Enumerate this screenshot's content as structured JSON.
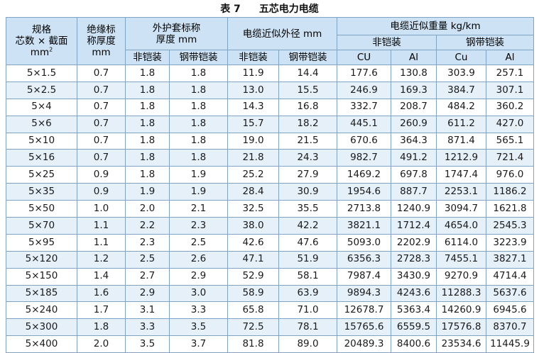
{
  "caption": {
    "number": "表 7",
    "title": "五芯电力电缆"
  },
  "headers": {
    "spec_line1": "规格",
    "spec_line2": "芯数 × 截面",
    "spec_line3": "mm",
    "spec_sup": "2",
    "insul_line1": "绝缘标",
    "insul_line2": "称厚度",
    "insul_line3": "mm",
    "sheath_line1": "外护套标称",
    "sheath_line2": "厚度 mm",
    "diam": "电缆近似外径 mm",
    "weight": "电缆近似重量 kg/km",
    "non_armored": "非铠装",
    "steel_armored": "钢带铠装",
    "cu_upper": "CU",
    "al_1": "Al",
    "cu_2": "Cu",
    "al_2": "Al"
  },
  "rows": [
    [
      "5×1.5",
      "0.7",
      "1.8",
      "1.8",
      "11.9",
      "14.4",
      "177.6",
      "130.8",
      "303.9",
      "257.1"
    ],
    [
      "5×2.5",
      "0.7",
      "1.8",
      "1.8",
      "13.0",
      "15.5",
      "246.9",
      "169.3",
      "384.7",
      "307.1"
    ],
    [
      "5×4",
      "0.7",
      "1.8",
      "1.8",
      "14.3",
      "16.8",
      "332.7",
      "208.7",
      "484.2",
      "360.2"
    ],
    [
      "5×6",
      "0.7",
      "1.8",
      "1.8",
      "15.7",
      "18.2",
      "445.1",
      "260.9",
      "611.2",
      "427.0"
    ],
    [
      "5×10",
      "0.7",
      "1.8",
      "1.8",
      "19.0",
      "21.5",
      "670.6",
      "364.3",
      "871.4",
      "565.1"
    ],
    [
      "5×16",
      "0.7",
      "1.8",
      "1.8",
      "21.8",
      "24.3",
      "982.7",
      "491.2",
      "1212.9",
      "721.4"
    ],
    [
      "5×25",
      "0.9",
      "1.8",
      "1.9",
      "25.2",
      "27.9",
      "1469.2",
      "697.8",
      "1747.4",
      "976.0"
    ],
    [
      "5×35",
      "0.9",
      "1.9",
      "1.9",
      "28.4",
      "30.9",
      "1954.6",
      "887.7",
      "2253.1",
      "1186.2"
    ],
    [
      "5×50",
      "1.0",
      "2.0",
      "2.1",
      "32.5",
      "35.5",
      "2713.8",
      "1240.9",
      "3094.7",
      "1621.8"
    ],
    [
      "5×70",
      "1.1",
      "2.2",
      "2.3",
      "38.0",
      "42.2",
      "3821.1",
      "1712.4",
      "4654.0",
      "2545.3"
    ],
    [
      "5×95",
      "1.1",
      "2.3",
      "2.5",
      "42.6",
      "47.6",
      "5093.0",
      "2202.9",
      "6114.0",
      "3223.9"
    ],
    [
      "5×120",
      "1.2",
      "2.5",
      "2.6",
      "47.1",
      "51.9",
      "6356.3",
      "2728.3",
      "7455.1",
      "3827.1"
    ],
    [
      "5×150",
      "1.4",
      "2.7",
      "2.9",
      "52.9",
      "58.1",
      "7987.4",
      "3430.9",
      "9270.9",
      "4714.4"
    ],
    [
      "5×185",
      "1.6",
      "2.9",
      "3.0",
      "58.9",
      "63.9",
      "9894.3",
      "4243.6",
      "11288.3",
      "5637.6"
    ],
    [
      "5×240",
      "1.7",
      "3.1",
      "3.3",
      "65.8",
      "71.0",
      "12678.7",
      "5363.4",
      "14260.9",
      "6945.6"
    ],
    [
      "5×300",
      "1.8",
      "3.3",
      "3.5",
      "72.5",
      "78.1",
      "15765.6",
      "6559.5",
      "17576.8",
      "8370.7"
    ],
    [
      "5×400",
      "2.0",
      "3.5",
      "3.7",
      "81.8",
      "89.0",
      "20489.3",
      "8400.6",
      "23534.6",
      "11445.9"
    ]
  ]
}
